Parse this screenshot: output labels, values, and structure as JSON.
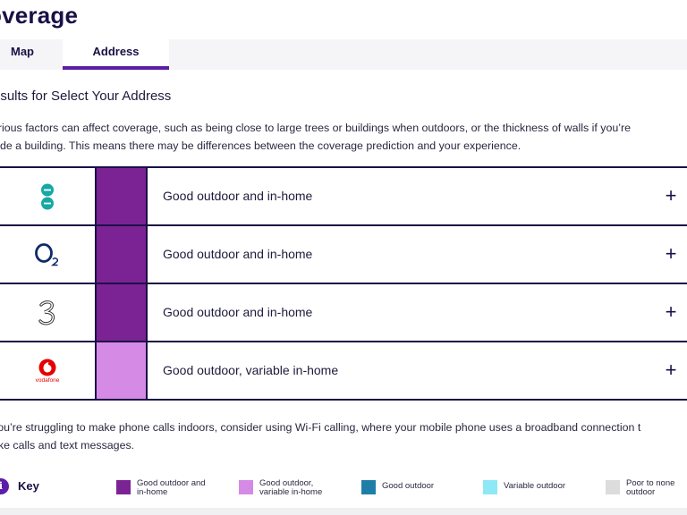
{
  "page": {
    "title": "overage",
    "tabs": [
      {
        "label": "Map",
        "active": false
      },
      {
        "label": "Address",
        "active": true
      }
    ],
    "results_heading": "esults for Select Your Address",
    "intro_line1": "arious factors can affect coverage, such as being close to large trees or buildings when outdoors, or the thickness of walls if you’re",
    "intro_line2": "side a building. This means there may be differences between the coverage prediction and your experience.",
    "footer_line1": "you’re struggling to make phone calls indoors, consider using Wi-Fi calling, where your mobile phone uses a broadband connection t",
    "footer_line2": "ake calls and text messages."
  },
  "operators": [
    {
      "logo": "ee-logo",
      "label": "Good outdoor and in-home",
      "swatch_color": "#7b2394",
      "expand_symbol": "+"
    },
    {
      "logo": "o2-logo",
      "label": "Good outdoor and in-home",
      "swatch_color": "#7b2394",
      "expand_symbol": "+"
    },
    {
      "logo": "three-logo",
      "label": "Good outdoor and in-home",
      "swatch_color": "#7b2394",
      "expand_symbol": "+"
    },
    {
      "logo": "vodafone-logo",
      "logo_text": "vodafone",
      "label": "Good outdoor, variable in-home",
      "swatch_color": "#d58ae6",
      "expand_symbol": "+"
    }
  ],
  "key": {
    "icon": "i",
    "title": "Key",
    "items": [
      {
        "line1": "Good outdoor and",
        "line2": "in-home",
        "color": "#7b2394"
      },
      {
        "line1": "Good outdoor,",
        "line2": "variable in-home",
        "color": "#d58ae6"
      },
      {
        "line1": "Good outdoor",
        "line2": "",
        "color": "#1f7ea8"
      },
      {
        "line1": "Variable outdoor",
        "line2": "",
        "color": "#8ee8f5"
      },
      {
        "line1": "Poor to none",
        "line2": "outdoor",
        "color": "#dcdcdc"
      }
    ]
  },
  "colors": {
    "brand_navy": "#1a1046",
    "brand_purple": "#5b1ea8",
    "ee_teal": "#16a8a3",
    "vodafone_red": "#e60000"
  }
}
